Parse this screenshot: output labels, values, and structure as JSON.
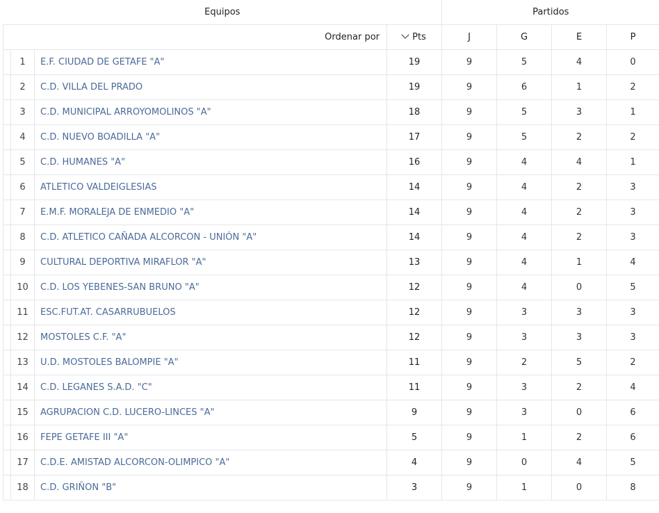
{
  "header": {
    "equipos": "Equipos",
    "partidos": "Partidos",
    "ordenar_por": "Ordenar por",
    "pts": "Pts",
    "j": "J",
    "g": "G",
    "e": "E",
    "p": "P",
    "sort_icon": "chevron-down-icon"
  },
  "rows": [
    {
      "rank": "1",
      "name": "E.F. CIUDAD DE GETAFE \"A\"",
      "pts": "19",
      "j": "9",
      "g": "5",
      "e": "4",
      "p": "0"
    },
    {
      "rank": "2",
      "name": "C.D. VILLA DEL PRADO",
      "pts": "19",
      "j": "9",
      "g": "6",
      "e": "1",
      "p": "2"
    },
    {
      "rank": "3",
      "name": "C.D. MUNICIPAL ARROYOMOLINOS \"A\"",
      "pts": "18",
      "j": "9",
      "g": "5",
      "e": "3",
      "p": "1"
    },
    {
      "rank": "4",
      "name": "C.D. NUEVO BOADILLA \"A\"",
      "pts": "17",
      "j": "9",
      "g": "5",
      "e": "2",
      "p": "2"
    },
    {
      "rank": "5",
      "name": "C.D. HUMANES \"A\"",
      "pts": "16",
      "j": "9",
      "g": "4",
      "e": "4",
      "p": "1"
    },
    {
      "rank": "6",
      "name": "ATLETICO VALDEIGLESIAS",
      "pts": "14",
      "j": "9",
      "g": "4",
      "e": "2",
      "p": "3"
    },
    {
      "rank": "7",
      "name": "E.M.F. MORALEJA DE ENMEDIO \"A\"",
      "pts": "14",
      "j": "9",
      "g": "4",
      "e": "2",
      "p": "3"
    },
    {
      "rank": "8",
      "name": "C.D. ATLETICO CAÑADA ALCORCON - UNIÓN \"A\"",
      "pts": "14",
      "j": "9",
      "g": "4",
      "e": "2",
      "p": "3"
    },
    {
      "rank": "9",
      "name": "CULTURAL DEPORTIVA MIRAFLOR \"A\"",
      "pts": "13",
      "j": "9",
      "g": "4",
      "e": "1",
      "p": "4"
    },
    {
      "rank": "10",
      "name": "C.D. LOS YEBENES-SAN BRUNO \"A\"",
      "pts": "12",
      "j": "9",
      "g": "4",
      "e": "0",
      "p": "5"
    },
    {
      "rank": "11",
      "name": "ESC.FUT.AT. CASARRUBUELOS",
      "pts": "12",
      "j": "9",
      "g": "3",
      "e": "3",
      "p": "3"
    },
    {
      "rank": "12",
      "name": "MOSTOLES C.F. \"A\"",
      "pts": "12",
      "j": "9",
      "g": "3",
      "e": "3",
      "p": "3"
    },
    {
      "rank": "13",
      "name": "U.D. MOSTOLES BALOMPIE \"A\"",
      "pts": "11",
      "j": "9",
      "g": "2",
      "e": "5",
      "p": "2"
    },
    {
      "rank": "14",
      "name": "C.D. LEGANES S.A.D. \"C\"",
      "pts": "11",
      "j": "9",
      "g": "3",
      "e": "2",
      "p": "4"
    },
    {
      "rank": "15",
      "name": "AGRUPACION C.D. LUCERO-LINCES \"A\"",
      "pts": "9",
      "j": "9",
      "g": "3",
      "e": "0",
      "p": "6"
    },
    {
      "rank": "16",
      "name": "FEPE GETAFE III \"A\"",
      "pts": "5",
      "j": "9",
      "g": "1",
      "e": "2",
      "p": "6"
    },
    {
      "rank": "17",
      "name": "C.D.E. AMISTAD ALCORCON-OLIMPICO \"A\"",
      "pts": "4",
      "j": "9",
      "g": "0",
      "e": "4",
      "p": "5"
    },
    {
      "rank": "18",
      "name": "C.D. GRIÑON \"B\"",
      "pts": "3",
      "j": "9",
      "g": "1",
      "e": "0",
      "p": "8"
    }
  ]
}
